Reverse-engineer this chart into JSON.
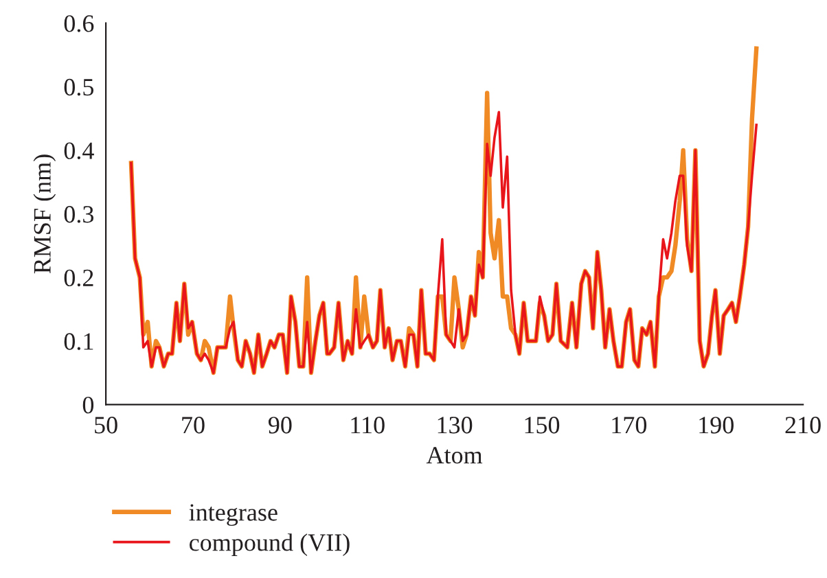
{
  "chart_data": {
    "type": "line",
    "xlabel": "Atom",
    "ylabel": "RMSF (nm)",
    "xlim": [
      50,
      210
    ],
    "xticks": [
      50,
      70,
      90,
      110,
      130,
      150,
      170,
      190,
      210
    ],
    "ylim": [
      0,
      0.6
    ],
    "yticks": [
      0,
      0.1,
      0.2,
      0.3,
      0.4,
      0.5,
      0.6
    ],
    "grid": false,
    "legend": "bottom left",
    "marker": "none",
    "line_style": "solid",
    "x": [
      55.8,
      56.7,
      57.8,
      58.6,
      59.6,
      60.5,
      61.5,
      62.3,
      63.3,
      64.3,
      65.2,
      66.2,
      67.0,
      68.0,
      68.9,
      69.8,
      70.9,
      71.8,
      72.7,
      73.6,
      74.7,
      75.6,
      76.6,
      77.5,
      78.5,
      79.3,
      80.3,
      81.2,
      82.1,
      83.1,
      84.0,
      85.0,
      85.9,
      86.9,
      87.8,
      88.7,
      89.7,
      90.6,
      91.6,
      92.5,
      93.5,
      94.4,
      95.3,
      96.2,
      97.1,
      98.1,
      99.0,
      99.9,
      100.8,
      101.3,
      102.4,
      103.4,
      104.5,
      105.5,
      106.5,
      107.4,
      108.4,
      109.3,
      110.3,
      111.3,
      112.2,
      113.0,
      114.0,
      114.9,
      115.8,
      116.8,
      117.7,
      118.7,
      119.6,
      120.6,
      121.5,
      122.4,
      123.4,
      124.3,
      125.3,
      126.2,
      127.2,
      128.1,
      129.1,
      130.0,
      131.0,
      131.9,
      132.8,
      133.8,
      134.7,
      135.6,
      136.5,
      137.5,
      138.3,
      139.2,
      140.2,
      141.1,
      142.1,
      143.0,
      144.0,
      144.9,
      145.9,
      146.8,
      147.7,
      148.7,
      149.6,
      150.6,
      151.5,
      152.5,
      153.4,
      154.4,
      155.9,
      157.0,
      158.0,
      159.1,
      160.0,
      160.9,
      161.8,
      162.8,
      163.7,
      164.6,
      165.6,
      166.5,
      167.5,
      168.4,
      169.4,
      170.3,
      171.3,
      172.2,
      173.1,
      174.1,
      175.0,
      176.0,
      176.9,
      177.9,
      178.8,
      179.8,
      180.7,
      181.7,
      182.5,
      183.4,
      184.4,
      185.3,
      186.3,
      187.2,
      188.2,
      189.1,
      189.9,
      190.9,
      191.8,
      192.8,
      193.7,
      194.6,
      195.5,
      196.5,
      197.4,
      198.3,
      199.3
    ],
    "series": [
      {
        "name": "integrase",
        "color": "#f08a24",
        "values": [
          0.38,
          0.23,
          0.2,
          0.11,
          0.13,
          0.06,
          0.1,
          0.09,
          0.06,
          0.08,
          0.08,
          0.16,
          0.1,
          0.19,
          0.11,
          0.13,
          0.08,
          0.07,
          0.1,
          0.09,
          0.05,
          0.09,
          0.09,
          0.09,
          0.17,
          0.12,
          0.07,
          0.06,
          0.1,
          0.08,
          0.05,
          0.11,
          0.06,
          0.08,
          0.1,
          0.09,
          0.11,
          0.11,
          0.05,
          0.17,
          0.13,
          0.06,
          0.06,
          0.2,
          0.05,
          0.1,
          0.14,
          0.16,
          0.08,
          0.08,
          0.09,
          0.16,
          0.07,
          0.1,
          0.08,
          0.2,
          0.09,
          0.17,
          0.11,
          0.09,
          0.1,
          0.18,
          0.09,
          0.12,
          0.07,
          0.1,
          0.1,
          0.06,
          0.12,
          0.11,
          0.06,
          0.18,
          0.08,
          0.08,
          0.07,
          0.17,
          0.17,
          0.11,
          0.1,
          0.2,
          0.15,
          0.09,
          0.11,
          0.17,
          0.14,
          0.24,
          0.2,
          0.49,
          0.27,
          0.23,
          0.29,
          0.17,
          0.17,
          0.12,
          0.11,
          0.08,
          0.16,
          0.1,
          0.1,
          0.1,
          0.16,
          0.14,
          0.1,
          0.11,
          0.19,
          0.1,
          0.09,
          0.16,
          0.09,
          0.19,
          0.21,
          0.2,
          0.12,
          0.24,
          0.18,
          0.09,
          0.15,
          0.1,
          0.06,
          0.06,
          0.13,
          0.15,
          0.07,
          0.06,
          0.12,
          0.11,
          0.13,
          0.06,
          0.17,
          0.2,
          0.2,
          0.21,
          0.25,
          0.32,
          0.4,
          0.26,
          0.21,
          0.4,
          0.1,
          0.06,
          0.08,
          0.14,
          0.18,
          0.08,
          0.14,
          0.15,
          0.16,
          0.13,
          0.17,
          0.22,
          0.28,
          0.45,
          0.56
        ]
      },
      {
        "name": "compound (VII)",
        "color": "#e8161b",
        "values": [
          0.38,
          0.23,
          0.2,
          0.09,
          0.1,
          0.06,
          0.09,
          0.09,
          0.06,
          0.08,
          0.08,
          0.16,
          0.1,
          0.19,
          0.12,
          0.13,
          0.08,
          0.07,
          0.08,
          0.07,
          0.05,
          0.09,
          0.09,
          0.09,
          0.12,
          0.13,
          0.07,
          0.06,
          0.1,
          0.08,
          0.05,
          0.11,
          0.06,
          0.08,
          0.1,
          0.09,
          0.11,
          0.11,
          0.05,
          0.17,
          0.13,
          0.06,
          0.06,
          0.13,
          0.05,
          0.1,
          0.14,
          0.16,
          0.08,
          0.08,
          0.09,
          0.16,
          0.07,
          0.1,
          0.08,
          0.15,
          0.09,
          0.1,
          0.11,
          0.09,
          0.1,
          0.18,
          0.09,
          0.12,
          0.07,
          0.1,
          0.1,
          0.06,
          0.11,
          0.11,
          0.06,
          0.18,
          0.08,
          0.08,
          0.07,
          0.17,
          0.26,
          0.11,
          0.1,
          0.09,
          0.15,
          0.1,
          0.11,
          0.17,
          0.14,
          0.22,
          0.2,
          0.41,
          0.36,
          0.42,
          0.46,
          0.31,
          0.39,
          0.18,
          0.11,
          0.08,
          0.16,
          0.1,
          0.1,
          0.1,
          0.17,
          0.14,
          0.1,
          0.11,
          0.19,
          0.1,
          0.09,
          0.16,
          0.09,
          0.19,
          0.21,
          0.2,
          0.12,
          0.24,
          0.18,
          0.09,
          0.15,
          0.1,
          0.06,
          0.06,
          0.13,
          0.15,
          0.07,
          0.06,
          0.12,
          0.11,
          0.13,
          0.06,
          0.17,
          0.26,
          0.23,
          0.27,
          0.32,
          0.36,
          0.36,
          0.25,
          0.21,
          0.4,
          0.1,
          0.06,
          0.08,
          0.14,
          0.18,
          0.08,
          0.14,
          0.15,
          0.16,
          0.13,
          0.17,
          0.22,
          0.28,
          0.36,
          0.44
        ]
      }
    ]
  }
}
